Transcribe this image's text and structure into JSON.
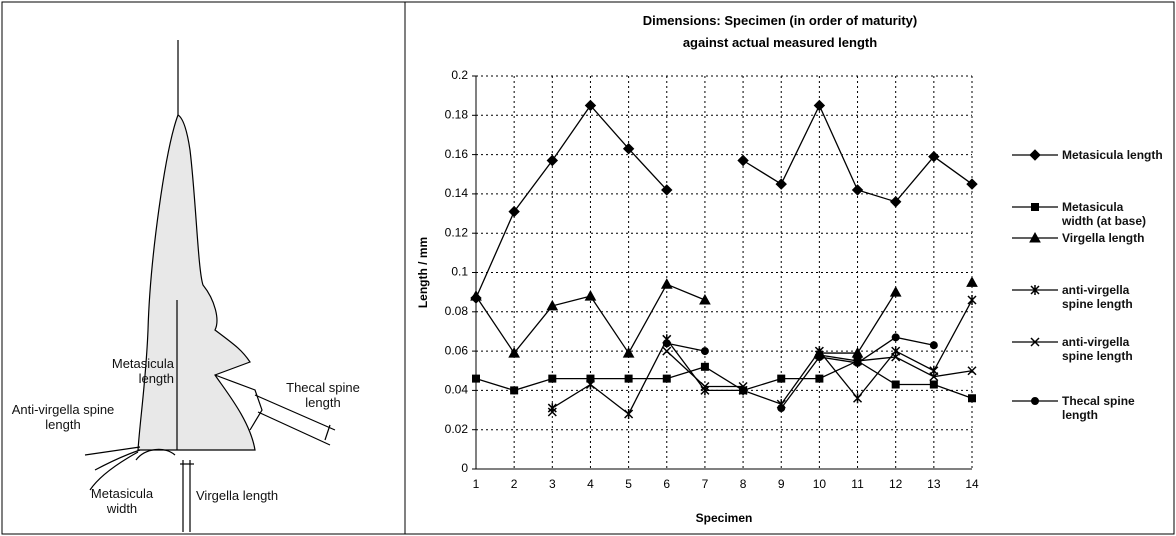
{
  "diagram": {
    "labels": [
      "Metasicula length",
      "Thecal spine length",
      "Anti-virgella spine length",
      "Metasicula width",
      "Virgella length"
    ]
  },
  "chart_data": {
    "type": "line",
    "title": "Dimensions: Specimen (in order of maturity) against actual measured length",
    "x_label": "Specimen",
    "y_label": "Length / mm",
    "categories": [
      "1",
      "2",
      "3",
      "4",
      "5",
      "6",
      "7",
      "8",
      "9",
      "10",
      "11",
      "12",
      "13",
      "14"
    ],
    "ylim": [
      0,
      0.2
    ],
    "yticks": [
      0,
      0.02,
      0.04,
      0.06,
      0.08,
      {
        "value": 0.1,
        "label": "0.1"
      },
      0.12,
      0.14,
      0.16,
      0.18,
      {
        "value": 0.2,
        "label": "0.2"
      }
    ],
    "grid": true,
    "series": [
      {
        "name": "Metasicula length",
        "color": "#000000",
        "marker": "diamond",
        "values": [
          0.087,
          0.131,
          0.157,
          0.185,
          0.163,
          0.142,
          null,
          0.157,
          0.145,
          0.185,
          0.142,
          0.136,
          0.159,
          0.145
        ]
      },
      {
        "name": "Metasicula width (at base)",
        "color": "#000000",
        "marker": "square",
        "values": [
          0.046,
          0.04,
          0.046,
          0.046,
          0.046,
          0.046,
          0.052,
          0.04,
          0.046,
          0.046,
          0.055,
          0.043,
          0.043,
          0.036
        ]
      },
      {
        "name": "Virgella length",
        "color": "#000000",
        "marker": "triangle",
        "values": [
          0.088,
          0.059,
          0.083,
          0.088,
          0.059,
          0.094,
          0.086,
          null,
          null,
          0.059,
          0.059,
          0.09,
          null,
          0.095
        ]
      },
      {
        "name": "anti-virgella spine length",
        "color": "#000000",
        "marker": "asterisk",
        "values": [
          null,
          null,
          0.031,
          0.043,
          0.028,
          0.066,
          0.04,
          0.04,
          0.033,
          0.06,
          0.036,
          0.06,
          0.05,
          0.086
        ]
      },
      {
        "name": "anti-virgella spine length",
        "color": "#000000",
        "marker": "cross",
        "values": [
          null,
          null,
          0.029,
          null,
          null,
          0.06,
          0.042,
          0.042,
          null,
          0.058,
          0.055,
          0.057,
          0.047,
          0.05
        ]
      },
      {
        "name": "Thecal spine length",
        "color": "#000000",
        "marker": "circle",
        "values": [
          null,
          0.04,
          null,
          null,
          null,
          0.064,
          0.06,
          null,
          0.031,
          0.057,
          0.054,
          0.067,
          0.063,
          null
        ]
      }
    ]
  }
}
